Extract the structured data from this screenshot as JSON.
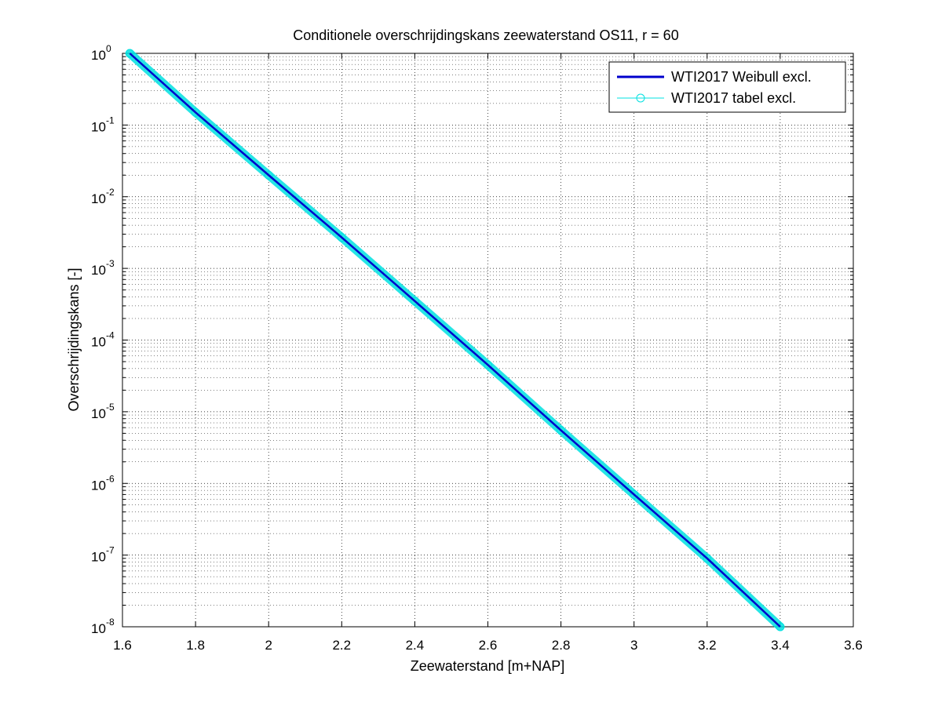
{
  "chart_data": {
    "type": "line",
    "title": "Conditionele overschrijdingskans zeewaterstand OS11, r = 60",
    "xlabel": "Zeewaterstand [m+NAP]",
    "ylabel": "Overschrijdingskans [-]",
    "xlim": [
      1.6,
      3.6
    ],
    "ylim": [
      1e-08,
      1
    ],
    "yscale": "log",
    "grid": true,
    "legend_position": "top-right",
    "x_ticks": [
      "1.6",
      "1.8",
      "2",
      "2.2",
      "2.4",
      "2.6",
      "2.8",
      "3",
      "3.2",
      "3.4",
      "3.6"
    ],
    "y_ticks": [
      {
        "base": "10",
        "exp": "0"
      },
      {
        "base": "10",
        "exp": "-1"
      },
      {
        "base": "10",
        "exp": "-2"
      },
      {
        "base": "10",
        "exp": "-3"
      },
      {
        "base": "10",
        "exp": "-4"
      },
      {
        "base": "10",
        "exp": "-5"
      },
      {
        "base": "10",
        "exp": "-6"
      },
      {
        "base": "10",
        "exp": "-7"
      },
      {
        "base": "10",
        "exp": "-8"
      }
    ],
    "series": [
      {
        "name": "WTI2017 Weibull excl.",
        "color": "#0000cc",
        "marker": "none",
        "x": [
          1.62,
          1.8,
          2.0,
          2.2,
          2.4,
          2.6,
          2.8,
          3.0,
          3.2,
          3.4
        ],
        "y": [
          1,
          0.15,
          0.02,
          0.0027,
          0.00035,
          4.5e-05,
          5.5e-06,
          7e-07,
          9e-08,
          1e-08
        ]
      },
      {
        "name": "WTI2017 tabel excl.",
        "color": "#00e0e0",
        "marker": "circle",
        "x": [
          1.62,
          1.8,
          2.0,
          2.2,
          2.4,
          2.6,
          2.8,
          3.0,
          3.2,
          3.4
        ],
        "y": [
          1,
          0.15,
          0.02,
          0.0027,
          0.00035,
          4.5e-05,
          5.5e-06,
          7e-07,
          9e-08,
          1e-08
        ]
      }
    ]
  }
}
